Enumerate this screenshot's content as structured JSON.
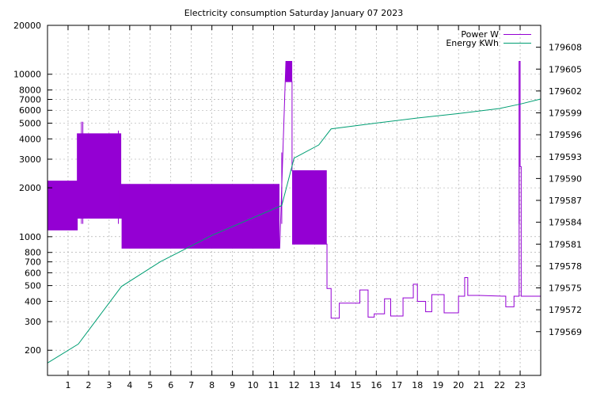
{
  "chart_data": {
    "type": "line",
    "title": "Electricity consumption Saturday January 07 2023",
    "xlabel": "",
    "ylabel": "",
    "y2label": "",
    "xlim": [
      0,
      24
    ],
    "ylim": [
      140,
      20000
    ],
    "ylog": true,
    "y2lim": [
      179563,
      179611
    ],
    "grid": true,
    "legend_position": "top-right",
    "x_ticks": [
      1,
      2,
      3,
      4,
      5,
      6,
      7,
      8,
      9,
      10,
      11,
      12,
      13,
      14,
      15,
      16,
      17,
      18,
      19,
      20,
      21,
      22,
      23
    ],
    "y_ticks": [
      {
        "v": 200,
        "label": "200"
      },
      {
        "v": 300,
        "label": "300"
      },
      {
        "v": 400,
        "label": "400"
      },
      {
        "v": 500,
        "label": "500"
      },
      {
        "v": 600,
        "label": "600"
      },
      {
        "v": 700,
        "label": "700"
      },
      {
        "v": 800,
        "label": "800"
      },
      {
        "v": 1000,
        "label": "1000"
      },
      {
        "v": 2000,
        "label": "2000"
      },
      {
        "v": 3000,
        "label": "3000"
      },
      {
        "v": 4000,
        "label": "4000"
      },
      {
        "v": 5000,
        "label": "5000"
      },
      {
        "v": 6000,
        "label": "6000"
      },
      {
        "v": 7000,
        "label": "7000"
      },
      {
        "v": 8000,
        "label": "8000"
      },
      {
        "v": 10000,
        "label": "10000"
      },
      {
        "v": 20000,
        "label": "20000"
      }
    ],
    "y2_ticks": [
      179569,
      179572,
      179575,
      179578,
      179581,
      179584,
      179587,
      179590,
      179593,
      179596,
      179599,
      179602,
      179605,
      179608
    ],
    "series": [
      {
        "name": "Power W",
        "axis": "y",
        "color": "#9400d3",
        "segments": [
          {
            "x0": 0.0,
            "x1": 1.45,
            "hi": 2200,
            "lo": 1100,
            "n": 26
          },
          {
            "x0": 1.45,
            "x1": 3.6,
            "hi": 4300,
            "lo": 1300,
            "n": 36
          },
          {
            "x0": 3.6,
            "x1": 11.3,
            "hi": 2100,
            "lo": 850,
            "n": 140
          },
          {
            "x0": 11.6,
            "x1": 11.9,
            "hi": 12000,
            "lo": 9000,
            "n": 14
          },
          {
            "x0": 11.9,
            "x1": 13.6,
            "hi": 2550,
            "lo": 900,
            "n": 32
          }
        ],
        "spikes": [
          {
            "x": 1.65,
            "v": 5100
          },
          {
            "x": 1.72,
            "v": 5100
          },
          {
            "x": 3.45,
            "v": 4500
          },
          {
            "x": 11.4,
            "v": 3300
          },
          {
            "x": 22.95,
            "v": 12000
          }
        ],
        "steps": [
          [
            13.6,
            480
          ],
          [
            13.8,
            480
          ],
          [
            13.8,
            315
          ],
          [
            14.2,
            315
          ],
          [
            14.2,
            390
          ],
          [
            14.8,
            390
          ],
          [
            15.2,
            390
          ],
          [
            15.2,
            470
          ],
          [
            15.6,
            470
          ],
          [
            15.6,
            320
          ],
          [
            15.9,
            320
          ],
          [
            15.9,
            335
          ],
          [
            16.4,
            335
          ],
          [
            16.4,
            415
          ],
          [
            16.7,
            415
          ],
          [
            16.7,
            325
          ],
          [
            17.3,
            325
          ],
          [
            17.3,
            420
          ],
          [
            17.8,
            420
          ],
          [
            17.8,
            510
          ],
          [
            18.0,
            510
          ],
          [
            18.0,
            400
          ],
          [
            18.4,
            400
          ],
          [
            18.4,
            345
          ],
          [
            18.7,
            345
          ],
          [
            18.7,
            440
          ],
          [
            19.3,
            440
          ],
          [
            19.3,
            340
          ],
          [
            20.0,
            340
          ],
          [
            20.0,
            430
          ],
          [
            20.3,
            430
          ],
          [
            20.3,
            560
          ],
          [
            20.45,
            560
          ],
          [
            20.45,
            435
          ],
          [
            21.0,
            435
          ],
          [
            22.3,
            430
          ],
          [
            22.3,
            370
          ],
          [
            22.7,
            370
          ],
          [
            22.7,
            430
          ],
          [
            22.95,
            430
          ],
          [
            22.95,
            12000
          ],
          [
            23.0,
            12000
          ],
          [
            23.0,
            2700
          ],
          [
            23.05,
            2700
          ],
          [
            23.05,
            430
          ],
          [
            24.0,
            430
          ]
        ]
      },
      {
        "name": "Energy KWh",
        "axis": "y2",
        "color": "#009e73",
        "points": [
          [
            0.0,
            179564.7
          ],
          [
            1.5,
            179567.3
          ],
          [
            3.6,
            179575.2
          ],
          [
            5.5,
            179578.6
          ],
          [
            8.0,
            179582.2
          ],
          [
            11.4,
            179586.3
          ],
          [
            12.0,
            179592.8
          ],
          [
            13.2,
            179594.6
          ],
          [
            13.8,
            179596.8
          ],
          [
            16.0,
            179597.6
          ],
          [
            18.0,
            179598.3
          ],
          [
            20.0,
            179598.9
          ],
          [
            22.0,
            179599.6
          ],
          [
            23.0,
            179600.2
          ],
          [
            24.0,
            179600.9
          ]
        ]
      }
    ]
  }
}
